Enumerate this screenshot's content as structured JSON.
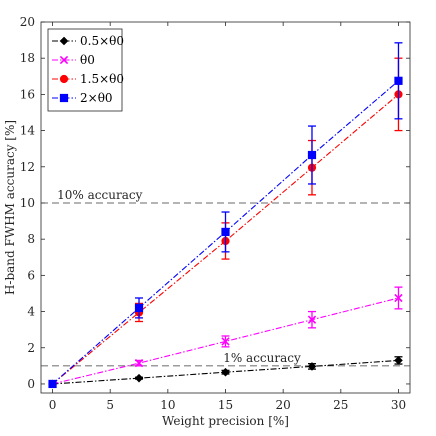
{
  "chart_data": {
    "type": "line",
    "xlabel": "Weight precision [%]",
    "ylabel": "H-band FWHM accuracy [%]",
    "xlim": [
      -1,
      31
    ],
    "ylim": [
      -0.5,
      20
    ],
    "xticks": [
      "0",
      "5",
      "10",
      "15",
      "20",
      "25",
      "30"
    ],
    "yticks": [
      "0",
      "2",
      "4",
      "6",
      "8",
      "10",
      "12",
      "14",
      "16",
      "18",
      "20"
    ],
    "grid": false,
    "legend_position": "top-left",
    "x": [
      0,
      7.5,
      15,
      22.5,
      30
    ],
    "series": [
      {
        "name": "0.5×θ0",
        "color": "#000000",
        "marker": "diamond",
        "values": [
          0,
          0.32,
          0.65,
          0.97,
          1.3
        ],
        "errors": [
          0,
          0.05,
          0.1,
          0.15,
          0.2
        ]
      },
      {
        "name": "θ0",
        "color": "#ff00ff",
        "marker": "x",
        "values": [
          0,
          1.15,
          2.35,
          3.55,
          4.75
        ],
        "errors": [
          0,
          0.15,
          0.3,
          0.45,
          0.6
        ]
      },
      {
        "name": "1.5×θ0",
        "color": "#ff0000",
        "marker": "circle",
        "values": [
          0,
          3.95,
          7.9,
          11.95,
          16.0
        ],
        "errors": [
          0,
          0.5,
          1.0,
          1.5,
          2.0
        ]
      },
      {
        "name": "2×θ0",
        "color": "#0000ff",
        "marker": "square",
        "values": [
          0,
          4.2,
          8.4,
          12.65,
          16.75
        ],
        "errors": [
          0,
          0.55,
          1.1,
          1.6,
          2.1
        ]
      }
    ],
    "reference_lines": [
      {
        "y": 10,
        "label": "10% accuracy"
      },
      {
        "y": 1,
        "label": "1% accuracy"
      }
    ]
  }
}
